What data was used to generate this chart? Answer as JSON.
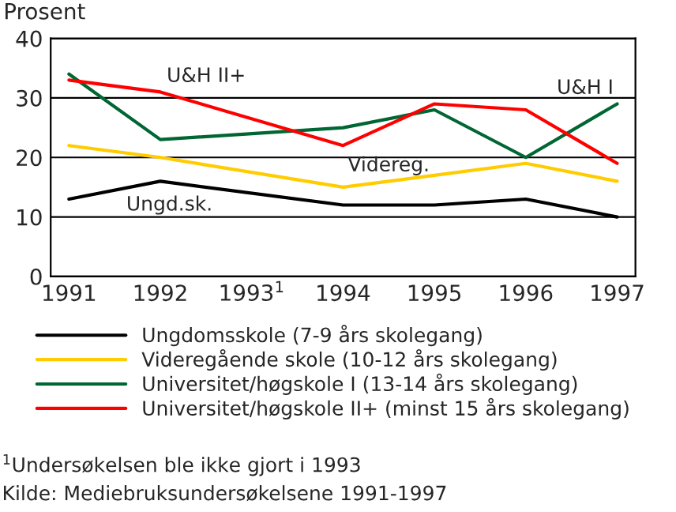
{
  "chart_data": {
    "type": "line",
    "ylabel": "Prosent",
    "x": [
      1991,
      1992,
      1994,
      1995,
      1996,
      1997
    ],
    "xlim": [
      1990.8,
      1997.2
    ],
    "xticks": [
      1991,
      1992,
      {
        "value": 1993,
        "label": "1993$^{1}$"
      },
      1994,
      1995,
      1996,
      1997
    ],
    "ylim": [
      0,
      40
    ],
    "yticks": [
      0,
      10,
      20,
      30,
      40
    ],
    "grid": "y",
    "legend": "bottom",
    "line_style": "solid",
    "series": [
      {
        "name": "Ungdomsskole (7-9 års skolegang)",
        "color": "#000000",
        "values": [
          13,
          16,
          12,
          12,
          13,
          10
        ]
      },
      {
        "name": "Videregående skole (10-12 års skolegang)",
        "color": "#ffcc00",
        "values": [
          22,
          20,
          15,
          17,
          19,
          16
        ]
      },
      {
        "name": "Universitet/høgskole I (13-14 års skolegang)",
        "color": "#006633",
        "values": [
          34,
          23,
          25,
          28,
          20,
          29
        ]
      },
      {
        "name": "Universitet/høgskole II+ (minst 15 års skolegang)",
        "color": "#ff0000",
        "values": [
          33,
          31,
          22,
          29,
          28,
          19
        ]
      }
    ],
    "annotations": [
      "U&H II+",
      "U&H I",
      "Videreg.",
      "Ungd.sk.",
      "$^{1}$Undersøkelsen ble ikke gjort i 1993",
      "Kilde: Mediebruksundersøkelsene 1991-1997"
    ]
  }
}
